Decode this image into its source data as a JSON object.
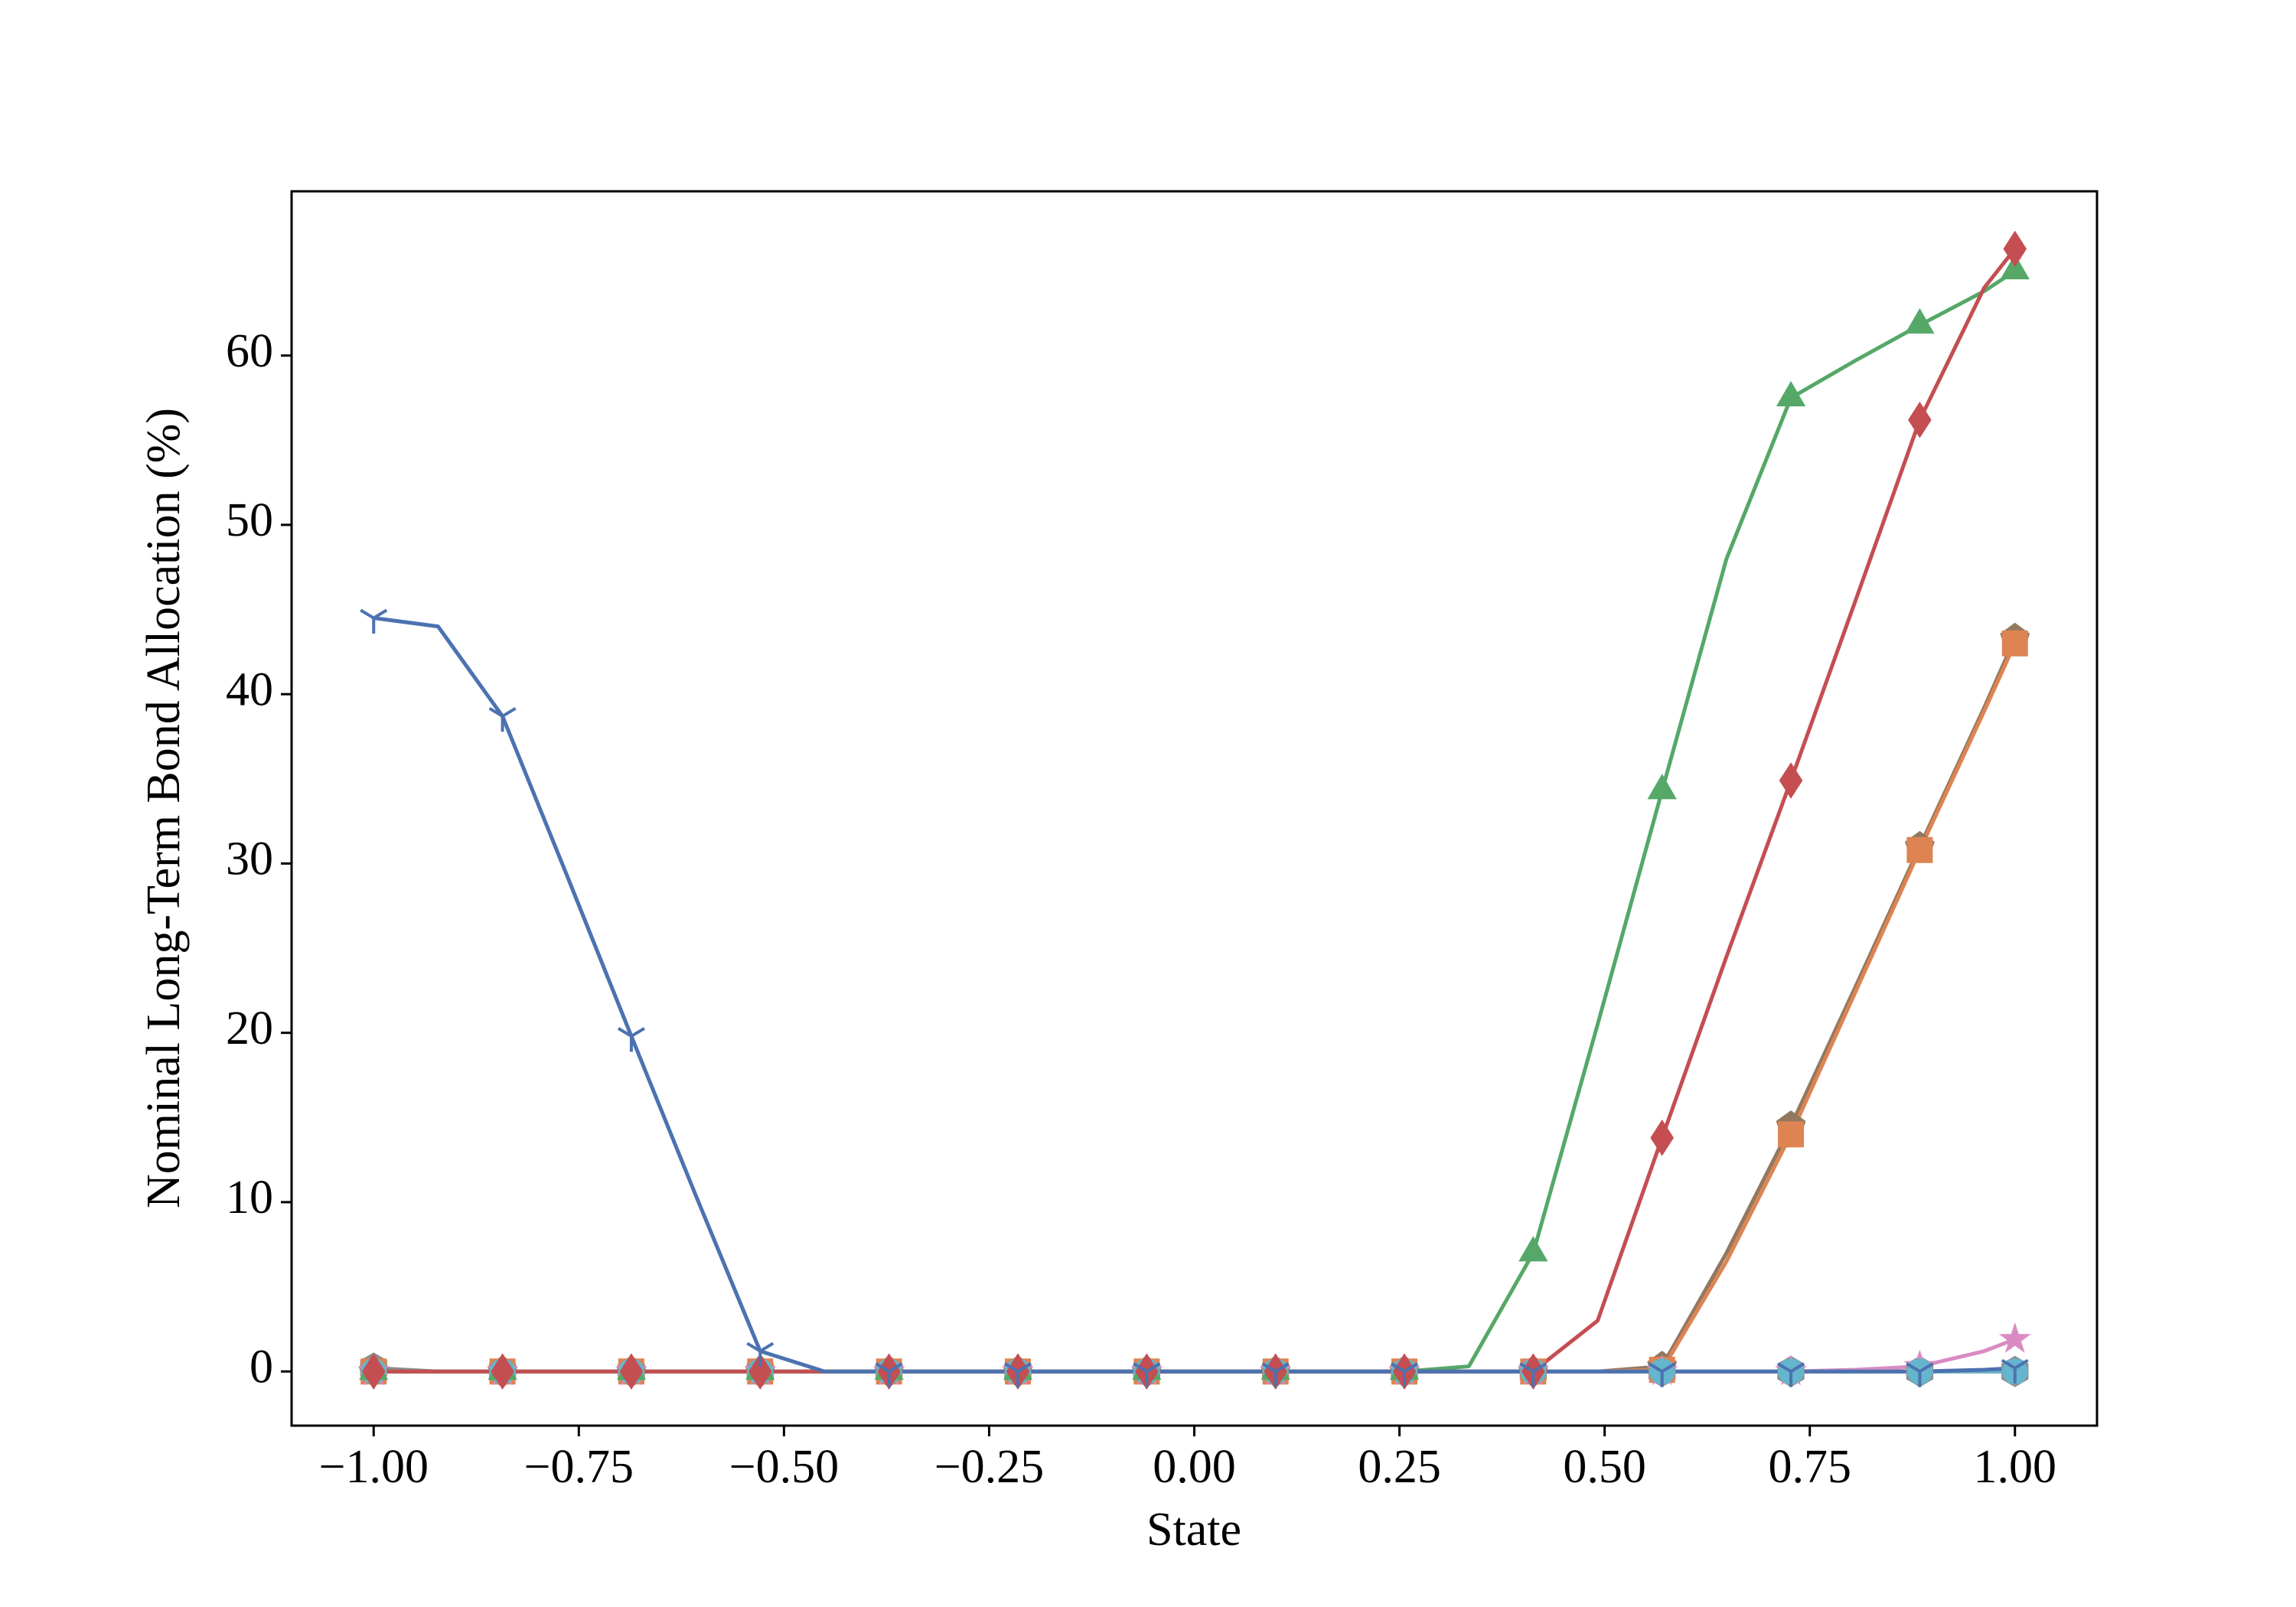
{
  "chart_data": {
    "type": "line",
    "xlabel": "State",
    "ylabel": "Nominal Long-Term Bond Allocation (%)",
    "x": [
      -1,
      -0.9215,
      -0.843,
      -0.7645,
      -0.686,
      -0.6075,
      -0.529,
      -0.4505,
      -0.372,
      -0.2935,
      -0.215,
      -0.1365,
      -0.058,
      0.0205,
      0.099,
      0.1775,
      0.256,
      0.3345,
      0.413,
      0.4915,
      0.57,
      0.6485,
      0.727,
      0.8055,
      0.884,
      0.9625,
      1.0
    ],
    "markevery": 2,
    "series": [
      {
        "color": "#8c8c8c",
        "marker": "hexagon",
        "values": [
          0.2,
          0,
          0,
          0,
          0,
          0,
          0,
          0,
          0,
          0,
          0,
          0,
          0,
          0,
          0,
          0,
          0,
          0,
          0,
          0,
          0,
          0,
          0,
          0,
          0,
          0,
          0
        ]
      },
      {
        "color": "#ccb974",
        "marker": "circle",
        "values": [
          0,
          0,
          0,
          0,
          0,
          0,
          0,
          0,
          0,
          0,
          0,
          0,
          0,
          0,
          0,
          0,
          0,
          0,
          0,
          0,
          0,
          0,
          0,
          0,
          0,
          0,
          0
        ]
      },
      {
        "color": "#937860",
        "marker": "pentagon",
        "values": [
          0,
          0,
          0,
          0,
          0,
          0,
          0,
          0,
          0,
          0,
          0,
          0,
          0,
          0,
          0,
          0,
          0,
          0,
          0,
          0,
          0.3,
          7,
          14.5,
          22.7,
          31,
          39.2,
          43.3
        ]
      },
      {
        "color": "#dd8452",
        "marker": "square",
        "values": [
          0,
          0,
          0,
          0,
          0,
          0,
          0,
          0,
          0,
          0,
          0,
          0,
          0,
          0,
          0,
          0,
          0,
          0,
          0,
          0,
          0.1,
          6.5,
          14,
          22.4,
          30.8,
          39,
          43
        ]
      },
      {
        "color": "#da8bc3",
        "marker": "star",
        "values": [
          0,
          0,
          0,
          0,
          0,
          0,
          0,
          0,
          0,
          0,
          0,
          0,
          0,
          0,
          0,
          0,
          0,
          0,
          0,
          0,
          0,
          0,
          0,
          0.1,
          0.3,
          1.2,
          1.9
        ]
      },
      {
        "color": "#64b5cd",
        "marker": "circle",
        "values": [
          0,
          0,
          0,
          0,
          0,
          0,
          0,
          0,
          0,
          0,
          0,
          0,
          0,
          0,
          0,
          0,
          0,
          0,
          0,
          0,
          0,
          0,
          0,
          0,
          0,
          0,
          0
        ]
      },
      {
        "color": "#55a868",
        "marker": "triangle",
        "values": [
          0,
          0,
          0,
          0,
          0,
          0,
          0,
          0,
          0,
          0,
          0,
          0,
          0,
          0,
          0,
          0,
          0,
          0.3,
          7,
          20.5,
          34.3,
          48,
          57.5,
          59.7,
          61.8,
          63.8,
          65
        ]
      },
      {
        "color": "#c44e52",
        "marker": "diamond",
        "values": [
          0,
          0,
          0,
          0,
          0,
          0,
          0,
          0,
          0,
          0,
          0,
          0,
          0,
          0,
          0,
          0,
          0,
          0,
          0,
          3,
          13.8,
          24.5,
          34.9,
          45.5,
          56.2,
          64,
          66.3
        ]
      },
      {
        "color": "#4c72b0",
        "marker": "tri",
        "values": [
          44.5,
          44,
          38.7,
          29.3,
          19.8,
          10.4,
          1.2,
          0,
          0,
          0,
          0,
          0,
          0,
          0,
          0,
          0,
          0,
          0,
          0,
          0,
          0,
          0,
          0,
          0,
          0,
          0.1,
          0.2
        ]
      }
    ],
    "xlim": [
      -1.1,
      1.1
    ],
    "ylim": [
      -3.2,
      69.7
    ],
    "xticks": [
      {
        "value": -1,
        "label": "−1.00"
      },
      {
        "value": -0.75,
        "label": "−0.75"
      },
      {
        "value": -0.5,
        "label": "−0.50"
      },
      {
        "value": -0.25,
        "label": "−0.25"
      },
      {
        "value": 0,
        "label": "0.00"
      },
      {
        "value": 0.25,
        "label": "0.25"
      },
      {
        "value": 0.5,
        "label": "0.50"
      },
      {
        "value": 0.75,
        "label": "0.75"
      },
      {
        "value": 1,
        "label": "1.00"
      }
    ],
    "yticks": [
      0,
      10,
      20,
      30,
      40,
      50,
      60
    ],
    "grid": false
  }
}
